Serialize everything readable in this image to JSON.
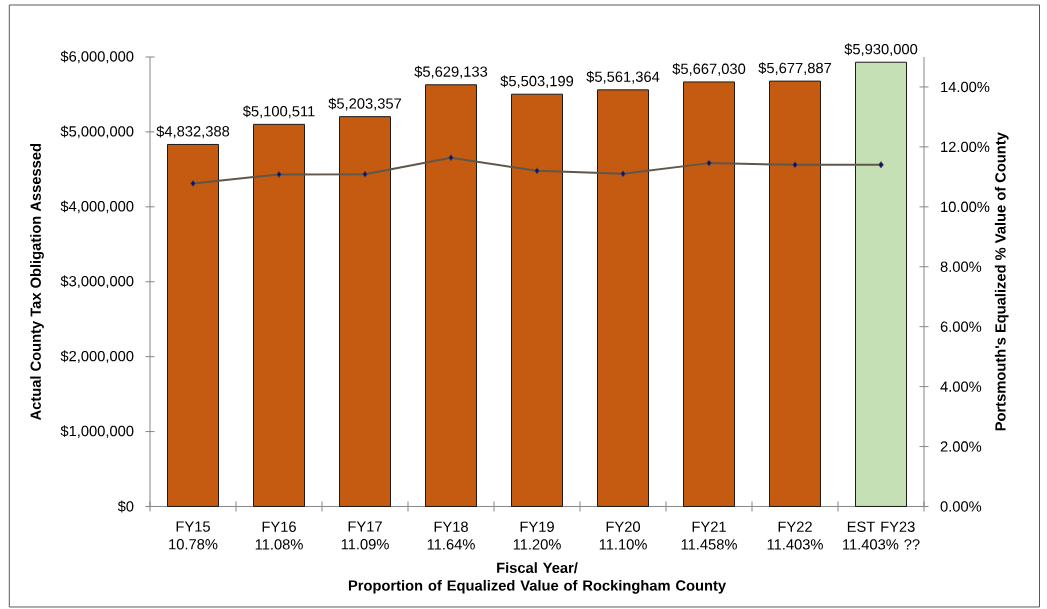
{
  "chart_data": {
    "type": "bar",
    "xlabel": "Fiscal Year/\nProportion of Equalized Value of Rockingham County",
    "ylabel": "Actual County Tax Obligation Assessed",
    "y2label": "Portsmouth's Equalized % Value of County",
    "categories": [
      "FY15 10.78%",
      "FY16 11.08%",
      "FY17 11.09%",
      "FY18 11.64%",
      "FY19 11.20%",
      "FY20 11.10%",
      "FY21 11.458%",
      "FY22 11.403%",
      "EST FY23 11.403% ??"
    ],
    "series": [
      {
        "colors": [
          "#c55a11",
          "#c55a11",
          "#c55a11",
          "#c55a11",
          "#c55a11",
          "#c55a11",
          "#c55a11",
          "#c55a11",
          "#c5e0b4"
        ],
        "values": [
          4832388,
          5100511,
          5203357,
          5629133,
          5503199,
          5561364,
          5667030,
          5677887,
          5930000
        ],
        "value_labels": [
          "$4,832,388",
          "$5,100,511",
          "$5,203,357",
          "$5,629,133",
          "$5,503,199",
          "$5,561,364",
          "$5,667,030",
          "$5,677,887",
          "$5,930,000"
        ]
      },
      {
        "type": "line",
        "axis": "y2",
        "color": "#5f574a",
        "marker": "diamond",
        "line_style": "solid",
        "values": [
          10.78,
          11.08,
          11.09,
          11.64,
          11.2,
          11.1,
          11.458,
          11.403,
          11.403
        ]
      }
    ],
    "ylim": [
      0,
      6000000
    ],
    "yticks": [
      {
        "value": 0,
        "label": "$0"
      },
      {
        "value": 1000000,
        "label": "$1,000,000"
      },
      {
        "value": 2000000,
        "label": "$2,000,000"
      },
      {
        "value": 3000000,
        "label": "$3,000,000"
      },
      {
        "value": 4000000,
        "label": "$4,000,000"
      },
      {
        "value": 5000000,
        "label": "$5,000,000"
      },
      {
        "value": 6000000,
        "label": "$6,000,000"
      }
    ],
    "y2lim": [
      0,
      15
    ],
    "y2ticks": [
      {
        "value": 0,
        "label": "0.00%"
      },
      {
        "value": 2,
        "label": "2.00%"
      },
      {
        "value": 4,
        "label": "4.00%"
      },
      {
        "value": 6,
        "label": "6.00%"
      },
      {
        "value": 8,
        "label": "8.00%"
      },
      {
        "value": 10,
        "label": "10.00%"
      },
      {
        "value": 12,
        "label": "12.00%"
      },
      {
        "value": 14,
        "label": "14.00%"
      }
    ]
  }
}
